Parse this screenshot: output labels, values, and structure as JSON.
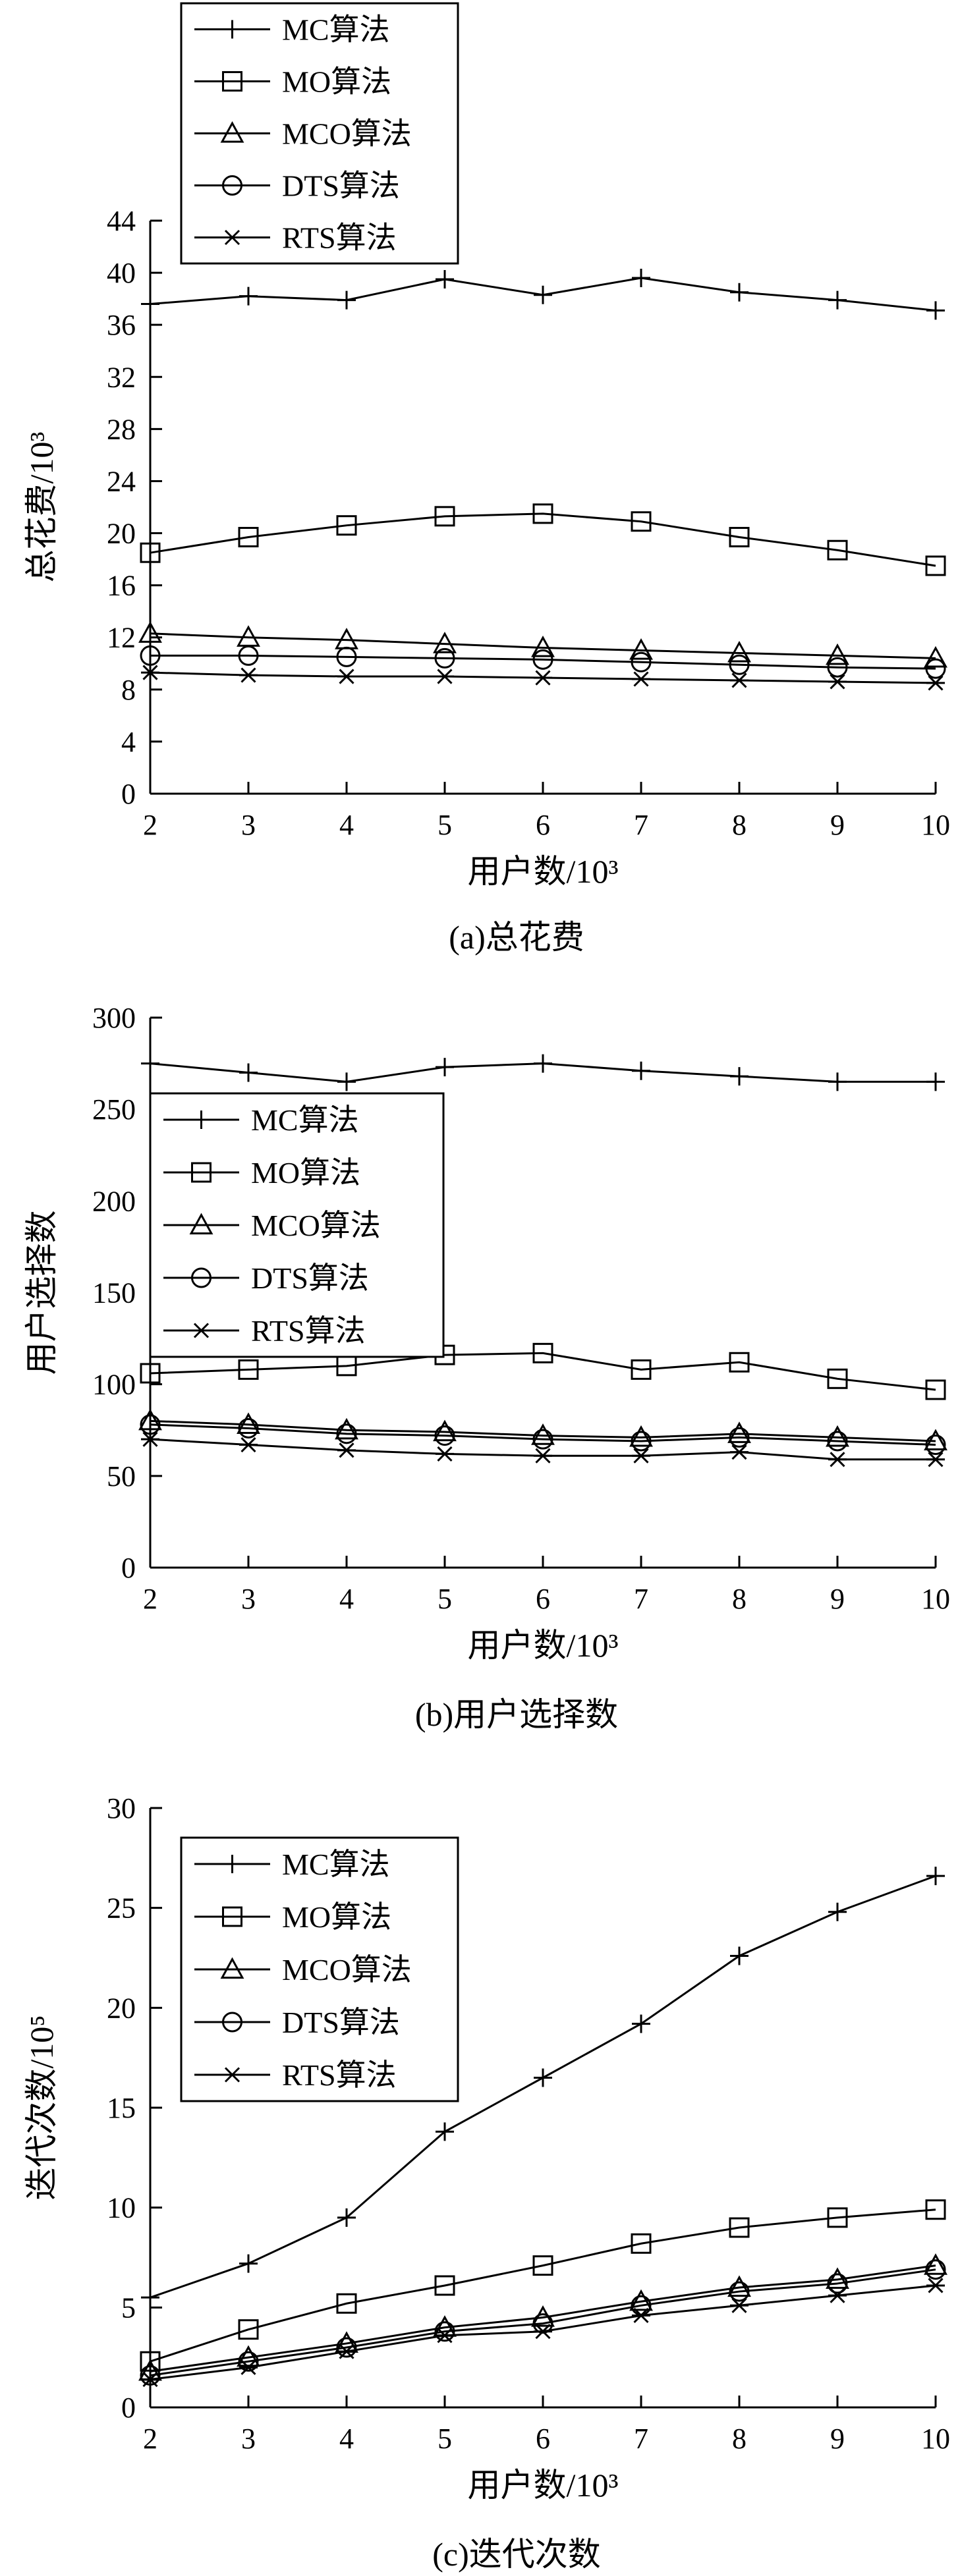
{
  "chart_data": [
    {
      "type": "line",
      "caption": "(a)总花费",
      "xlabel": "用户数/10³",
      "ylabel": "总花费/10³",
      "x": [
        2,
        3,
        4,
        5,
        6,
        7,
        8,
        9,
        10
      ],
      "xlim": [
        2,
        10
      ],
      "ylim": [
        0,
        44
      ],
      "yticks": [
        0,
        4,
        8,
        12,
        16,
        20,
        24,
        28,
        32,
        36,
        40,
        44
      ],
      "legend_position": "top-left",
      "series": [
        {
          "name": "MC算法",
          "marker": "plus",
          "values": [
            37.6,
            38.2,
            37.9,
            39.5,
            38.3,
            39.6,
            38.5,
            37.9,
            37.1
          ]
        },
        {
          "name": "MO算法",
          "marker": "square",
          "values": [
            18.5,
            19.7,
            20.6,
            21.3,
            21.5,
            20.9,
            19.7,
            18.7,
            17.5
          ]
        },
        {
          "name": "MCO算法",
          "marker": "triangle",
          "values": [
            12.3,
            12.0,
            11.8,
            11.5,
            11.2,
            11.0,
            10.8,
            10.6,
            10.4
          ]
        },
        {
          "name": "DTS算法",
          "marker": "circle",
          "values": [
            10.6,
            10.6,
            10.5,
            10.4,
            10.3,
            10.1,
            9.9,
            9.7,
            9.6
          ]
        },
        {
          "name": "RTS算法",
          "marker": "asterisk",
          "values": [
            9.3,
            9.1,
            9.0,
            9.0,
            8.9,
            8.8,
            8.7,
            8.6,
            8.5
          ]
        }
      ]
    },
    {
      "type": "line",
      "caption": "(b)用户选择数",
      "xlabel": "用户数/10³",
      "ylabel": "用户选择数",
      "x": [
        2,
        3,
        4,
        5,
        6,
        7,
        8,
        9,
        10
      ],
      "xlim": [
        2,
        10
      ],
      "ylim": [
        0,
        300
      ],
      "yticks": [
        0,
        50,
        100,
        150,
        200,
        250,
        300
      ],
      "legend_position": "upper-left",
      "series": [
        {
          "name": "MC算法",
          "marker": "plus",
          "values": [
            275,
            270,
            265,
            273,
            275,
            271,
            268,
            265,
            265
          ]
        },
        {
          "name": "MO算法",
          "marker": "square",
          "values": [
            106,
            108,
            110,
            116,
            117,
            108,
            112,
            103,
            97
          ]
        },
        {
          "name": "MCO算法",
          "marker": "triangle",
          "values": [
            80,
            78,
            75,
            74,
            72,
            71,
            73,
            71,
            69
          ]
        },
        {
          "name": "DTS算法",
          "marker": "circle",
          "values": [
            78,
            76,
            73,
            72,
            70,
            69,
            71,
            69,
            67
          ]
        },
        {
          "name": "RTS算法",
          "marker": "asterisk",
          "values": [
            70,
            67,
            64,
            62,
            61,
            61,
            63,
            59,
            59
          ]
        }
      ]
    },
    {
      "type": "line",
      "caption": "(c)迭代次数",
      "xlabel": "用户数/10³",
      "ylabel": "迭代次数/10⁵",
      "x": [
        2,
        3,
        4,
        5,
        6,
        7,
        8,
        9,
        10
      ],
      "xlim": [
        2,
        10
      ],
      "ylim": [
        0,
        30
      ],
      "yticks": [
        0,
        5,
        10,
        15,
        20,
        25,
        30
      ],
      "legend_position": "top-left",
      "series": [
        {
          "name": "MC算法",
          "marker": "plus",
          "values": [
            5.5,
            7.2,
            9.5,
            13.8,
            16.5,
            19.2,
            22.6,
            24.8,
            26.6
          ]
        },
        {
          "name": "MO算法",
          "marker": "square",
          "values": [
            2.3,
            3.9,
            5.2,
            6.1,
            7.1,
            8.2,
            9.0,
            9.5,
            9.9
          ]
        },
        {
          "name": "MCO算法",
          "marker": "triangle",
          "values": [
            1.8,
            2.5,
            3.2,
            4.0,
            4.5,
            5.3,
            6.0,
            6.4,
            7.1
          ]
        },
        {
          "name": "DTS算法",
          "marker": "circle",
          "values": [
            1.6,
            2.3,
            3.0,
            3.8,
            4.2,
            5.1,
            5.8,
            6.2,
            6.9
          ]
        },
        {
          "name": "RTS算法",
          "marker": "asterisk",
          "values": [
            1.4,
            2.0,
            2.8,
            3.6,
            3.8,
            4.6,
            5.1,
            5.6,
            6.1
          ]
        }
      ]
    }
  ]
}
